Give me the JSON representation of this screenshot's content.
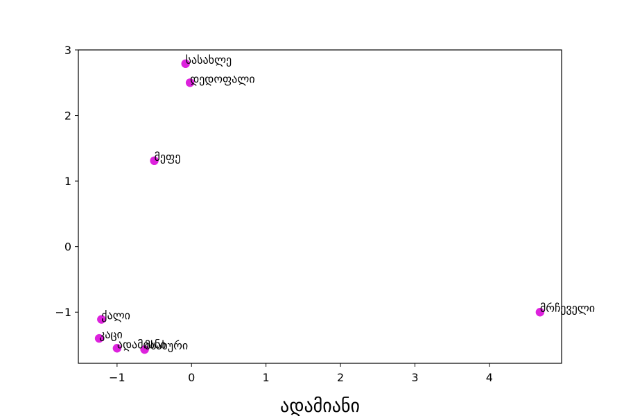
{
  "chart_data": {
    "type": "scatter",
    "xlabel": "ადამიანი",
    "ylabel": "",
    "title": "",
    "xlim": [
      -1.52,
      4.97
    ],
    "ylim": [
      -1.78,
      3.0
    ],
    "xticks": [
      -1,
      0,
      1,
      2,
      3,
      4
    ],
    "yticks": [
      -1,
      0,
      1,
      2,
      3
    ],
    "xtick_labels": [
      "−1",
      "0",
      "1",
      "2",
      "3",
      "4"
    ],
    "ytick_labels": [
      "−1",
      "0",
      "1",
      "2",
      "3"
    ],
    "grid": false,
    "marker_color": "#dd22dd",
    "points": [
      {
        "label": "სასახლე",
        "x": -0.08,
        "y": 2.79
      },
      {
        "label": "დედოფალი",
        "x": -0.02,
        "y": 2.5
      },
      {
        "label": "მეფე",
        "x": -0.5,
        "y": 1.31
      },
      {
        "label": "ქალი",
        "x": -1.21,
        "y": -1.11
      },
      {
        "label": "კაცი",
        "x": -1.24,
        "y": -1.4
      },
      {
        "label": "ადამიანი",
        "x": -1.0,
        "y": -1.55
      },
      {
        "label": "მსახური",
        "x": -0.63,
        "y": -1.57
      },
      {
        "label": "მრჩეველი",
        "x": 4.68,
        "y": -1.0
      }
    ]
  }
}
